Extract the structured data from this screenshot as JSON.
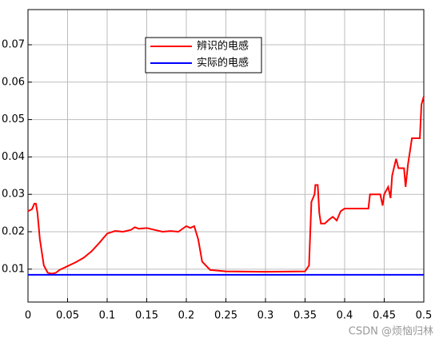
{
  "chart_data": {
    "type": "line",
    "x": [
      0,
      0.005,
      0.008,
      0.01,
      0.012,
      0.015,
      0.02,
      0.025,
      0.03,
      0.035,
      0.04,
      0.05,
      0.06,
      0.07,
      0.08,
      0.09,
      0.1,
      0.11,
      0.12,
      0.13,
      0.135,
      0.14,
      0.15,
      0.16,
      0.17,
      0.18,
      0.19,
      0.2,
      0.205,
      0.21,
      0.215,
      0.22,
      0.23,
      0.25,
      0.3,
      0.35,
      0.355,
      0.358,
      0.362,
      0.363,
      0.366,
      0.368,
      0.37,
      0.375,
      0.38,
      0.385,
      0.39,
      0.395,
      0.4,
      0.43,
      0.432,
      0.445,
      0.448,
      0.45,
      0.455,
      0.458,
      0.46,
      0.465,
      0.468,
      0.475,
      0.477,
      0.48,
      0.485,
      0.495,
      0.497,
      0.5
    ],
    "series": [
      {
        "name": "辨识的电感",
        "color": "#ff0000",
        "values": [
          0.0255,
          0.026,
          0.0275,
          0.0275,
          0.025,
          0.018,
          0.011,
          0.009,
          0.0088,
          0.009,
          0.0098,
          0.0108,
          0.0118,
          0.013,
          0.0147,
          0.017,
          0.0195,
          0.0202,
          0.02,
          0.0205,
          0.0212,
          0.0208,
          0.021,
          0.0205,
          0.02,
          0.0202,
          0.02,
          0.0215,
          0.021,
          0.0215,
          0.018,
          0.012,
          0.0098,
          0.0094,
          0.0093,
          0.0094,
          0.011,
          0.028,
          0.03,
          0.0325,
          0.0325,
          0.025,
          0.0222,
          0.0222,
          0.0232,
          0.024,
          0.023,
          0.0255,
          0.0262,
          0.0262,
          0.03,
          0.03,
          0.027,
          0.03,
          0.032,
          0.029,
          0.035,
          0.0395,
          0.037,
          0.037,
          0.032,
          0.038,
          0.045,
          0.045,
          0.054,
          0.0562
        ]
      },
      {
        "name": "实际的电感",
        "color": "#0000ff",
        "values": [
          0.0085,
          0.0085,
          0.0085,
          0.0085,
          0.0085,
          0.0085,
          0.0085,
          0.0085,
          0.0085,
          0.0085,
          0.0085,
          0.0085,
          0.0085,
          0.0085,
          0.0085,
          0.0085,
          0.0085,
          0.0085,
          0.0085,
          0.0085,
          0.0085,
          0.0085,
          0.0085,
          0.0085,
          0.0085,
          0.0085,
          0.0085,
          0.0085,
          0.0085,
          0.0085,
          0.0085,
          0.0085,
          0.0085,
          0.0085,
          0.0085,
          0.0085,
          0.0085,
          0.0085,
          0.0085,
          0.0085,
          0.0085,
          0.0085,
          0.0085,
          0.0085,
          0.0085,
          0.0085,
          0.0085,
          0.0085,
          0.0085,
          0.0085,
          0.0085,
          0.0085,
          0.0085,
          0.0085,
          0.0085,
          0.0085,
          0.0085,
          0.0085,
          0.0085,
          0.0085,
          0.0085,
          0.0085,
          0.0085,
          0.0085,
          0.0085,
          0.0085
        ]
      }
    ],
    "xlim": [
      0,
      0.5
    ],
    "xticks": [
      0,
      0.05,
      0.1,
      0.15,
      0.2,
      0.25,
      0.3,
      0.35,
      0.4,
      0.45,
      0.5
    ],
    "ylim": [
      0.0012,
      0.0794
    ],
    "yticks": [
      0.01,
      0.02,
      0.03,
      0.04,
      0.05,
      0.06,
      0.07
    ],
    "grid": true,
    "legend": "top"
  },
  "watermark": "CSDN @烦恼归林"
}
